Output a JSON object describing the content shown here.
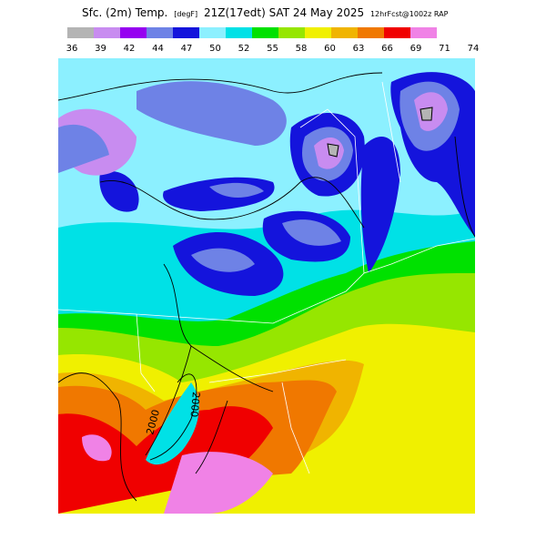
{
  "header": {
    "title_main": "Sfc. (2m) Temp.",
    "units": "[degF]",
    "valid": "21Z(17edt) SAT 24 May 2025",
    "model": "12hrFcst@1002z RAP"
  },
  "colorbar": {
    "labels": [
      36,
      39,
      42,
      44,
      47,
      50,
      52,
      55,
      58,
      60,
      63,
      66,
      69,
      71,
      74
    ],
    "colors": [
      "#b4b4b4",
      "#c88cf0",
      "#9600f0",
      "#6e82e6",
      "#1414dc",
      "#8cf0ff",
      "#00e1e6",
      "#00e100",
      "#96e600",
      "#f0f000",
      "#f0b400",
      "#f07800",
      "#f00000",
      "#f082e6"
    ]
  },
  "contour_labels": [
    "2000",
    "2000"
  ]
}
